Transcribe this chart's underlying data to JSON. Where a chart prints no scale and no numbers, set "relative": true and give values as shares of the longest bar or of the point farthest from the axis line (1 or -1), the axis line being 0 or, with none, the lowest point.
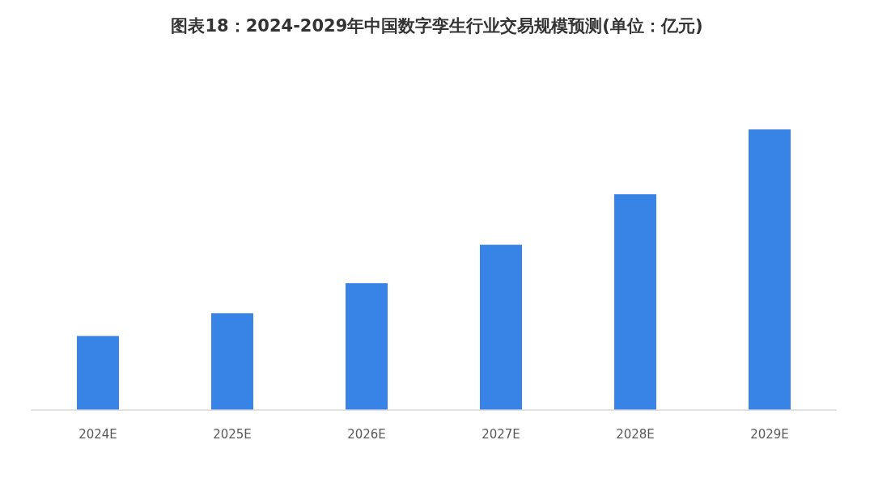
{
  "chart_data": {
    "type": "bar",
    "title": "图表18：2024-2029年中国数字孪生行业交易规模预测(单位：亿元)",
    "categories": [
      "2024E",
      "2025E",
      "2026E",
      "2027E",
      "2028E",
      "2029E"
    ],
    "values": [
      0.264,
      0.345,
      0.452,
      0.589,
      0.769,
      1
    ],
    "color": "#3784e6",
    "relative": true
  }
}
